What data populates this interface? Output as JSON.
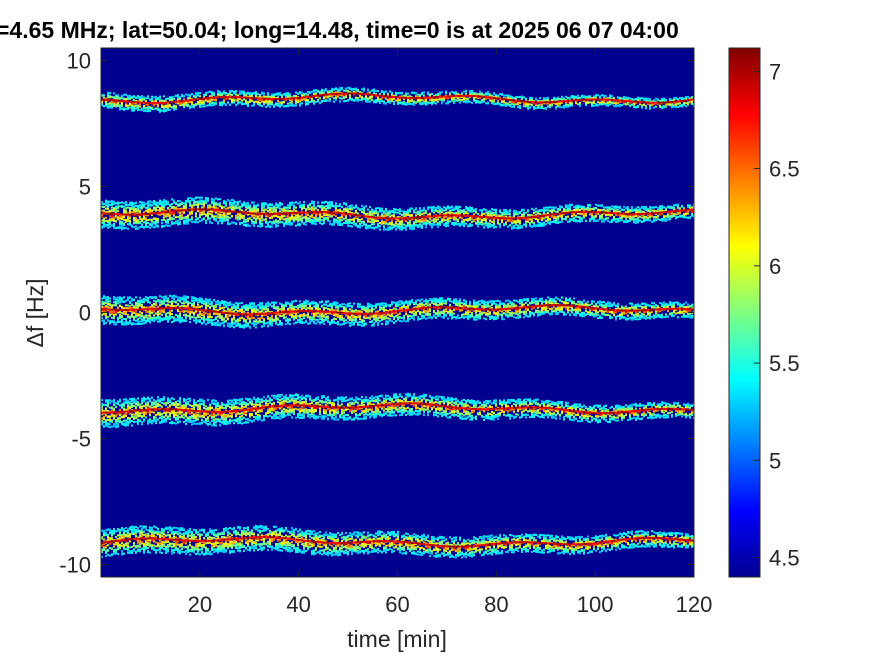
{
  "chart_data": {
    "type": "heatmap",
    "title": "=4.65 MHz;  lat=50.04; long=14.48, time=0 is at 2025 06 07 04:00",
    "xlabel": "time [min]",
    "ylabel": "Δf [Hz]",
    "xlim": [
      0,
      120
    ],
    "ylim": [
      -10.5,
      10.5
    ],
    "xticks": [
      20,
      40,
      60,
      80,
      100,
      120
    ],
    "yticks": [
      -10,
      -5,
      0,
      5,
      10
    ],
    "colorbar": {
      "colormap": "jet",
      "clim": [
        4.4,
        7.12
      ],
      "ticks": [
        4.5,
        5,
        5.5,
        6,
        6.5,
        7
      ]
    },
    "background_color": "#00008f",
    "bands": [
      {
        "freq_offset": 8.5
      },
      {
        "freq_offset": 3.9
      },
      {
        "freq_offset": 0.1
      },
      {
        "freq_offset": -3.8
      },
      {
        "freq_offset": -9.1
      }
    ]
  }
}
